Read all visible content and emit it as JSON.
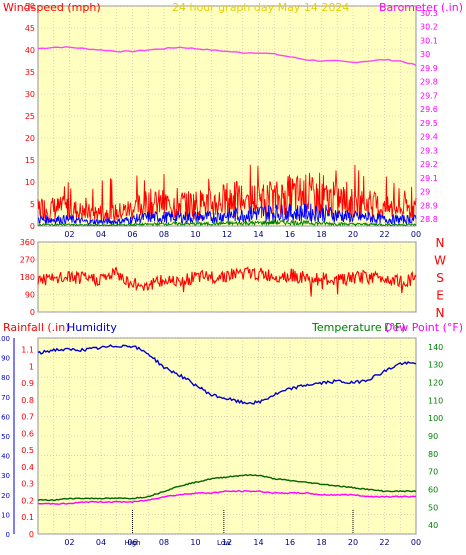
{
  "chart_data": [
    {
      "panel": "wind-barometer",
      "type": "line",
      "title": "24 hour graph day   May 14 2024",
      "left_axis_label": "Windspeed (mph)",
      "right_axis_label": "Barometer (.in)",
      "x_ticks": [
        "02",
        "04",
        "06",
        "08",
        "10",
        "12",
        "14",
        "16",
        "18",
        "20",
        "22",
        "00"
      ],
      "y_left_ticks": [
        0,
        5,
        10,
        15,
        20,
        25,
        30,
        35,
        40,
        45,
        50
      ],
      "y_left_range": [
        0,
        50
      ],
      "y_right_ticks": [
        "28.8",
        "28.9",
        "29",
        "29.1",
        "29.2",
        "29.3",
        "29.4",
        "29.5",
        "29.6",
        "29.7",
        "29.8",
        "29.9",
        "30",
        "30.1",
        "30.2",
        "30.3"
      ],
      "y_right_range": [
        28.75,
        30.35
      ],
      "hours": [
        0,
        1,
        2,
        3,
        4,
        5,
        6,
        7,
        8,
        9,
        10,
        11,
        12,
        13,
        14,
        15,
        16,
        17,
        18,
        19,
        20,
        21,
        22,
        23,
        24
      ],
      "series": [
        {
          "color": "#ff44ff",
          "axis": "right",
          "values": [
            30.04,
            30.05,
            30.05,
            30.04,
            30.03,
            30.02,
            30.02,
            30.03,
            30.04,
            30.05,
            30.04,
            30.03,
            30.02,
            30.01,
            30.01,
            30.0,
            29.98,
            29.96,
            29.95,
            29.95,
            29.94,
            29.95,
            29.96,
            29.95,
            29.92
          ]
        },
        {
          "color": "#ff0000",
          "axis": "left",
          "noisy": true,
          "values": [
            4,
            4,
            4,
            3,
            3,
            3,
            4,
            5,
            5,
            5,
            5,
            5,
            6,
            6,
            6,
            6,
            7,
            7,
            6,
            6,
            5,
            5,
            4,
            4,
            4
          ]
        },
        {
          "color": "#0000ff",
          "axis": "left",
          "noisy": true,
          "values": [
            1.5,
            1.5,
            1.5,
            1,
            1,
            1,
            1.5,
            2,
            2,
            2,
            2,
            2,
            2.5,
            2.5,
            3,
            3,
            3,
            3,
            3,
            2.5,
            2,
            2,
            1.5,
            1.5,
            1.5
          ]
        },
        {
          "color": "#008000",
          "axis": "left",
          "noisy": true,
          "values": [
            0.3,
            0.3,
            0.3,
            0.2,
            0.2,
            0.2,
            0.3,
            0.4,
            0.5,
            0.5,
            0.5,
            0.5,
            0.6,
            0.6,
            0.7,
            0.8,
            0.8,
            0.7,
            0.6,
            0.5,
            0.4,
            0.4,
            0.3,
            0.3,
            0.3
          ]
        }
      ]
    },
    {
      "panel": "wind-direction",
      "type": "line",
      "y_ticks": [
        0,
        90,
        180,
        270,
        360
      ],
      "y_range": [
        0,
        360
      ],
      "compass_labels": [
        "N",
        "W",
        "S",
        "E",
        "N"
      ],
      "color": "#ff0000",
      "hours": [
        0,
        1,
        2,
        3,
        4,
        5,
        6,
        7,
        8,
        9,
        10,
        11,
        12,
        13,
        14,
        15,
        16,
        17,
        18,
        19,
        20,
        21,
        22,
        23,
        24
      ],
      "values": [
        170,
        165,
        180,
        170,
        170,
        200,
        140,
        140,
        160,
        170,
        175,
        180,
        190,
        200,
        195,
        185,
        190,
        175,
        170,
        160,
        175,
        180,
        175,
        165,
        170
      ]
    },
    {
      "panel": "rain-humidity-temperature",
      "type": "line",
      "left_axis_label_rain": "Rainfall (.in)",
      "left_axis_label_humidity": "Humidity",
      "right_axis_label_temp": "Temperature (°F)",
      "right_axis_label_dew": "Dew Point (°F)",
      "x_ticks": [
        "02",
        "04",
        "06",
        "08",
        "10",
        "12",
        "14",
        "16",
        "18",
        "20",
        "22",
        "00"
      ],
      "y_humidity_ticks": [
        0,
        10,
        20,
        30,
        40,
        50,
        60,
        70,
        80,
        90,
        100
      ],
      "y_rain_ticks": [
        "0",
        "0.1",
        "0.2",
        "0.3",
        "0.4",
        "0.5",
        "0.6",
        "0.7",
        "0.8",
        "0.9",
        "1",
        "1.1"
      ],
      "y_temp_ticks": [
        40,
        50,
        60,
        70,
        80,
        90,
        100,
        110,
        120,
        130,
        140
      ],
      "rain_range": [
        0,
        1.17
      ],
      "temp_range": [
        35,
        145
      ],
      "markers": [
        {
          "label": "High",
          "hour": 6.0
        },
        {
          "label": "Low",
          "hour": 11.8
        },
        {
          "label": "",
          "hour": 20.0
        }
      ],
      "hours": [
        0,
        1,
        2,
        3,
        4,
        5,
        6,
        7,
        8,
        9,
        10,
        11,
        12,
        13,
        14,
        15,
        16,
        17,
        18,
        19,
        20,
        21,
        22,
        23,
        24
      ],
      "series": [
        {
          "color": "#0000cc",
          "axis": "humidity",
          "values": [
            92,
            94,
            94,
            94,
            95,
            96,
            96,
            92,
            85,
            81,
            76,
            71,
            69,
            67,
            67,
            71,
            74,
            76,
            77,
            78,
            77,
            79,
            83,
            87,
            87
          ]
        },
        {
          "color": "#006400",
          "axis": "temp",
          "values": [
            54,
            54,
            55,
            55,
            55,
            55,
            55,
            56,
            59,
            62,
            64,
            66,
            67,
            68,
            68,
            66,
            65,
            64,
            63,
            62,
            61,
            60,
            59,
            59,
            59
          ]
        },
        {
          "color": "#ff00ff",
          "axis": "temp",
          "values": [
            52,
            52,
            52,
            53,
            53,
            53,
            53,
            54,
            56,
            57,
            58,
            58,
            59,
            59,
            59,
            58,
            58,
            58,
            57,
            57,
            57,
            56,
            56,
            56,
            56
          ]
        }
      ]
    }
  ]
}
